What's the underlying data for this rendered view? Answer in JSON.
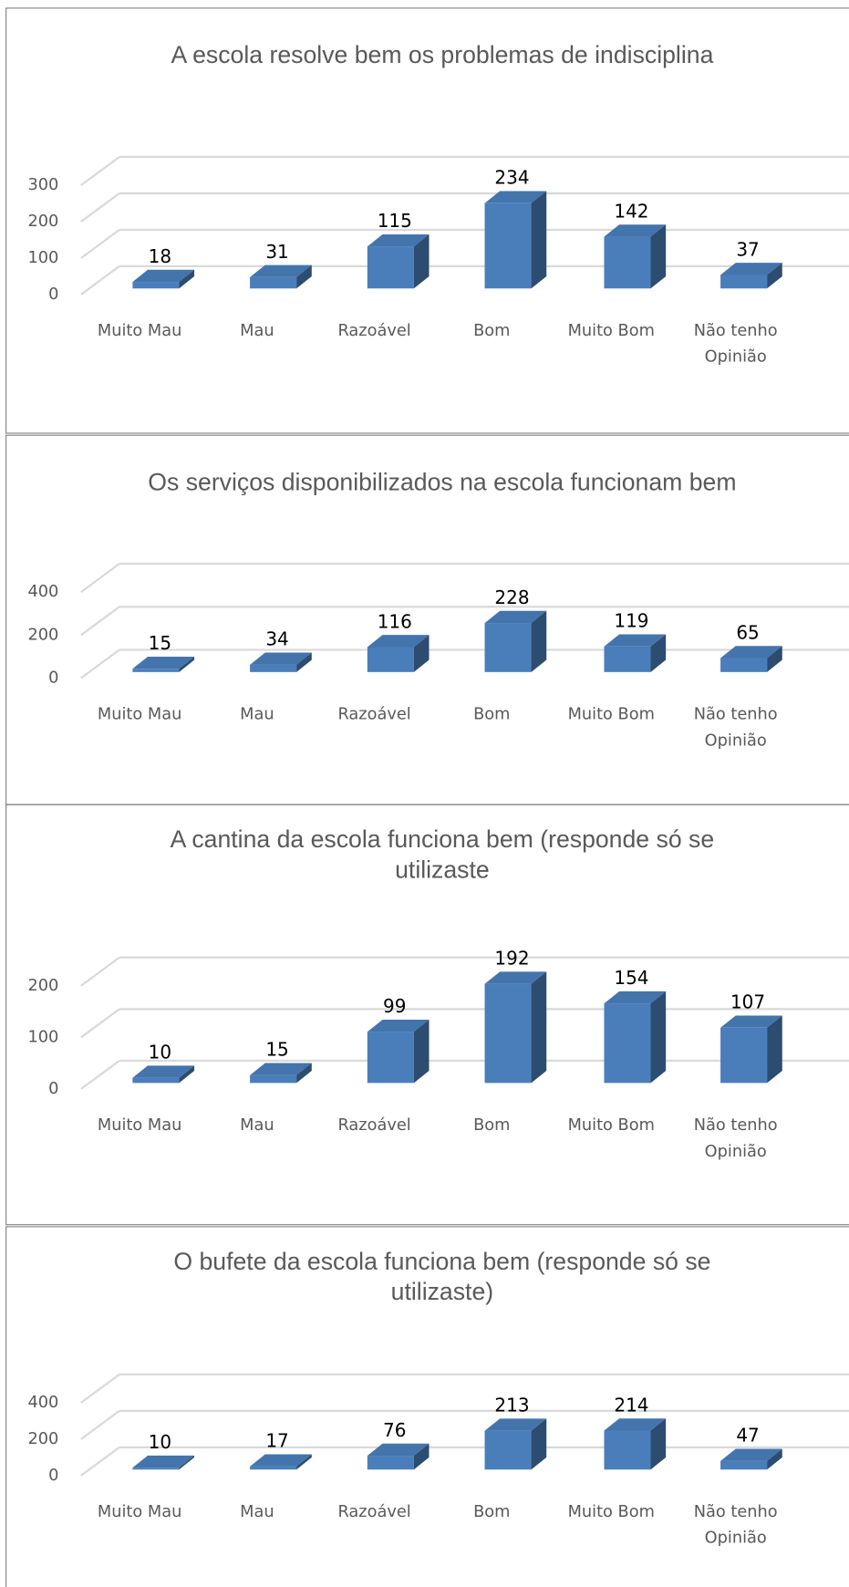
{
  "chart_data": [
    {
      "type": "bar3d",
      "title": "A escola resolve bem os problemas de indisciplina",
      "categories": [
        "Muito Mau",
        "Mau",
        "Razoável",
        "Bom",
        "Muito Bom",
        "Não tenho Opinião"
      ],
      "values": [
        18,
        31,
        115,
        234,
        142,
        37
      ],
      "color": "#4a7ebb",
      "ylim": [
        0,
        300
      ],
      "yticks": [
        0,
        100,
        200,
        300
      ],
      "grid": true
    },
    {
      "type": "bar3d",
      "title": "Os serviços disponibilizados na escola funcionam bem",
      "categories": [
        "Muito Mau",
        "Mau",
        "Razoável",
        "Bom",
        "Muito Bom",
        "Não tenho Opinião"
      ],
      "values": [
        15,
        34,
        116,
        228,
        119,
        65
      ],
      "color": "#4a7ebb",
      "ylim": [
        0,
        400
      ],
      "yticks": [
        0,
        200,
        400
      ],
      "grid": true
    },
    {
      "type": "bar3d",
      "title": "A cantina da escola funciona bem (responde só se utilizaste",
      "categories": [
        "Muito Mau",
        "Mau",
        "Razoável",
        "Bom",
        "Muito Bom",
        "Não tenho Opinião"
      ],
      "values": [
        10,
        15,
        99,
        192,
        154,
        107
      ],
      "color": "#4a7ebb",
      "ylim": [
        0,
        200
      ],
      "yticks": [
        0,
        100,
        200
      ],
      "grid": true
    },
    {
      "type": "bar3d",
      "title": "O bufete da escola funciona bem (responde só se utilizaste)",
      "categories": [
        "Muito Mau",
        "Mau",
        "Razoável",
        "Bom",
        "Muito Bom",
        "Não tenho Opinião"
      ],
      "values": [
        10,
        17,
        76,
        213,
        214,
        47
      ],
      "color": "#4a7ebb",
      "ylim": [
        0,
        400
      ],
      "yticks": [
        0,
        200,
        400
      ],
      "grid": true
    }
  ]
}
